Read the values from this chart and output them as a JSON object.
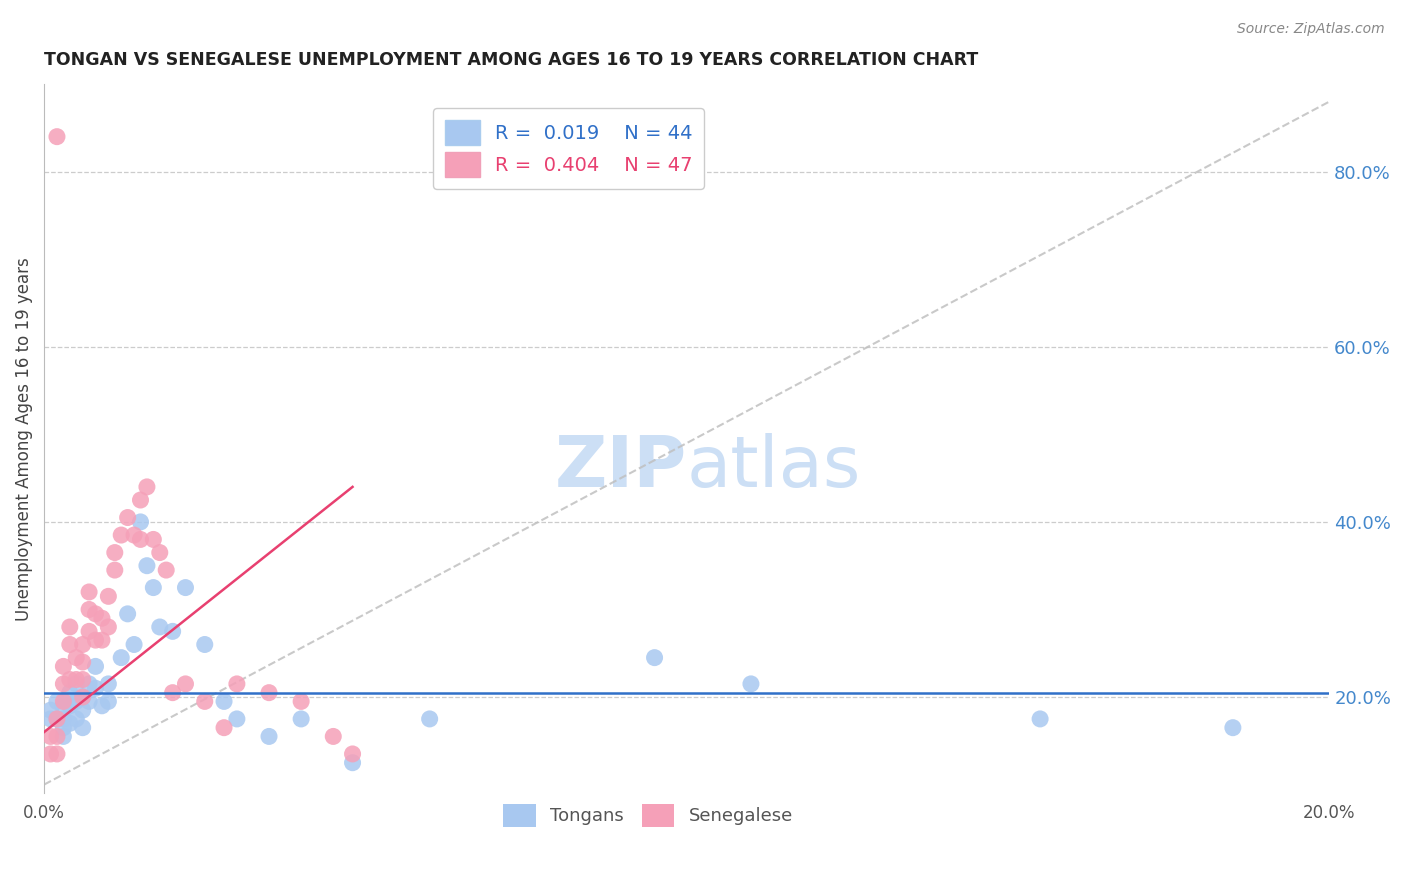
{
  "title": "TONGAN VS SENEGALESE UNEMPLOYMENT AMONG AGES 16 TO 19 YEARS CORRELATION CHART",
  "source": "Source: ZipAtlas.com",
  "ylabel": "Unemployment Among Ages 16 to 19 years",
  "xlim": [
    0.0,
    0.2
  ],
  "ylim": [
    0.09,
    0.9
  ],
  "yticks": [
    0.2,
    0.4,
    0.6,
    0.8
  ],
  "xticks": [
    0.0,
    0.2
  ],
  "tongan_R": "0.019",
  "tongan_N": "44",
  "senegalese_R": "0.404",
  "senegalese_N": "47",
  "tongan_color": "#a8c8f0",
  "senegalese_color": "#f5a0b8",
  "tongan_trend_color": "#3070c8",
  "senegalese_trend_color": "#e84070",
  "diagonal_color": "#c0c0c0",
  "background_color": "#ffffff",
  "title_color": "#222222",
  "source_color": "#888888",
  "right_axis_color": "#4488cc",
  "watermark_color": "#ccdff5",
  "grid_color": "#cccccc",
  "tongan_x": [
    0.001,
    0.001,
    0.002,
    0.002,
    0.003,
    0.003,
    0.003,
    0.003,
    0.004,
    0.004,
    0.004,
    0.005,
    0.005,
    0.005,
    0.006,
    0.006,
    0.006,
    0.007,
    0.007,
    0.008,
    0.008,
    0.009,
    0.01,
    0.01,
    0.012,
    0.013,
    0.014,
    0.015,
    0.016,
    0.017,
    0.018,
    0.02,
    0.022,
    0.025,
    0.028,
    0.03,
    0.035,
    0.04,
    0.048,
    0.06,
    0.095,
    0.11,
    0.155,
    0.185
  ],
  "tongan_y": [
    0.185,
    0.175,
    0.195,
    0.175,
    0.19,
    0.175,
    0.165,
    0.155,
    0.205,
    0.19,
    0.17,
    0.215,
    0.195,
    0.175,
    0.2,
    0.185,
    0.165,
    0.215,
    0.195,
    0.235,
    0.21,
    0.19,
    0.215,
    0.195,
    0.245,
    0.295,
    0.26,
    0.4,
    0.35,
    0.325,
    0.28,
    0.275,
    0.325,
    0.26,
    0.195,
    0.175,
    0.155,
    0.175,
    0.125,
    0.175,
    0.245,
    0.215,
    0.175,
    0.165
  ],
  "senegalese_x": [
    0.001,
    0.001,
    0.002,
    0.002,
    0.002,
    0.003,
    0.003,
    0.003,
    0.004,
    0.004,
    0.004,
    0.005,
    0.005,
    0.006,
    0.006,
    0.006,
    0.006,
    0.007,
    0.007,
    0.007,
    0.008,
    0.008,
    0.009,
    0.009,
    0.01,
    0.01,
    0.011,
    0.011,
    0.012,
    0.013,
    0.014,
    0.015,
    0.015,
    0.016,
    0.017,
    0.018,
    0.019,
    0.02,
    0.022,
    0.025,
    0.028,
    0.03,
    0.035,
    0.04,
    0.045,
    0.048,
    0.002
  ],
  "senegalese_y": [
    0.155,
    0.135,
    0.175,
    0.155,
    0.135,
    0.215,
    0.235,
    0.195,
    0.26,
    0.28,
    0.22,
    0.245,
    0.22,
    0.26,
    0.24,
    0.22,
    0.2,
    0.3,
    0.32,
    0.275,
    0.295,
    0.265,
    0.29,
    0.265,
    0.315,
    0.28,
    0.345,
    0.365,
    0.385,
    0.405,
    0.385,
    0.425,
    0.38,
    0.44,
    0.38,
    0.365,
    0.345,
    0.205,
    0.215,
    0.195,
    0.165,
    0.215,
    0.205,
    0.195,
    0.155,
    0.135,
    0.84
  ],
  "senegalese_trendline_x": [
    0.0,
    0.048
  ],
  "senegalese_trendline_y": [
    0.16,
    0.44
  ],
  "tongan_trendline_y": [
    0.205,
    0.205
  ]
}
